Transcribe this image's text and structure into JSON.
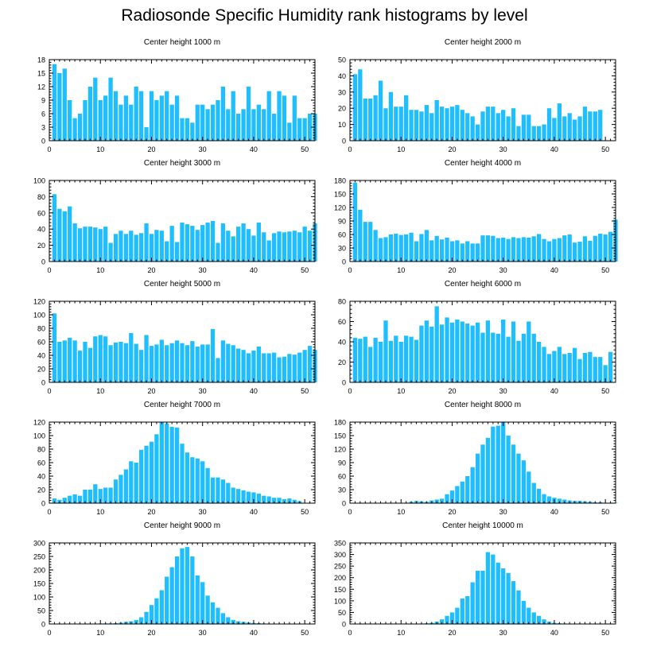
{
  "title": "Radiosonde Specific Humidity rank histograms by level",
  "colors": {
    "bar": "#1ebeff",
    "axis": "#000000",
    "background": "#ffffff"
  },
  "chart_data": [
    {
      "type": "bar",
      "title": "Center height 1000 m",
      "xlim": [
        0,
        52
      ],
      "ylim": [
        0,
        18
      ],
      "xticks": [
        0,
        10,
        20,
        30,
        40,
        50
      ],
      "yticks": [
        0,
        3,
        6,
        9,
        12,
        15,
        18
      ],
      "values": [
        17,
        15,
        16,
        9,
        5,
        6,
        9,
        12,
        14,
        9,
        10,
        14,
        11,
        8,
        10,
        8,
        12,
        11,
        3,
        11,
        9,
        10,
        11,
        8,
        10,
        5,
        5,
        4,
        8,
        8,
        7,
        8,
        9,
        12,
        7,
        11,
        6,
        7,
        12,
        7,
        8,
        7,
        11,
        6,
        11,
        10,
        4,
        10,
        5,
        5,
        6,
        6
      ]
    },
    {
      "type": "bar",
      "title": "Center height 2000 m",
      "xlim": [
        0,
        52
      ],
      "ylim": [
        0,
        50
      ],
      "xticks": [
        0,
        10,
        20,
        30,
        40,
        50
      ],
      "yticks": [
        0,
        10,
        20,
        30,
        40,
        50
      ],
      "values": [
        41,
        44,
        26,
        26,
        28,
        37,
        20,
        30,
        21,
        21,
        28,
        19,
        19,
        18,
        22,
        17,
        25,
        21,
        20,
        21,
        22,
        19,
        17,
        15,
        10,
        18,
        21,
        21,
        17,
        19,
        15,
        20,
        9,
        16,
        16,
        9,
        9,
        10,
        20,
        14,
        23,
        15,
        17,
        13,
        15,
        21,
        18,
        18,
        19
      ]
    },
    {
      "type": "bar",
      "title": "Center height 3000 m",
      "xlim": [
        0,
        52
      ],
      "ylim": [
        0,
        100
      ],
      "xticks": [
        0,
        10,
        20,
        30,
        40,
        50
      ],
      "yticks": [
        0,
        20,
        40,
        60,
        80,
        100
      ],
      "values": [
        83,
        65,
        62,
        68,
        47,
        41,
        43,
        43,
        42,
        40,
        43,
        23,
        34,
        38,
        34,
        38,
        33,
        35,
        47,
        34,
        39,
        38,
        25,
        44,
        24,
        48,
        46,
        44,
        39,
        45,
        48,
        50,
        23,
        47,
        38,
        31,
        43,
        47,
        40,
        32,
        48,
        36,
        26,
        35,
        37,
        36,
        37,
        38,
        36,
        43,
        38,
        47
      ]
    },
    {
      "type": "bar",
      "title": "Center height 4000 m",
      "xlim": [
        0,
        52
      ],
      "ylim": [
        0,
        180
      ],
      "xticks": [
        0,
        10,
        20,
        30,
        40,
        50
      ],
      "yticks": [
        0,
        30,
        60,
        90,
        120,
        150,
        180
      ],
      "values": [
        175,
        115,
        88,
        88,
        70,
        52,
        54,
        60,
        62,
        59,
        60,
        64,
        45,
        61,
        70,
        47,
        57,
        49,
        53,
        45,
        47,
        40,
        45,
        40,
        40,
        58,
        58,
        57,
        52,
        53,
        50,
        54,
        52,
        54,
        53,
        56,
        61,
        50,
        45,
        50,
        52,
        58,
        60,
        42,
        44,
        56,
        46,
        57,
        62,
        60,
        66,
        93
      ]
    },
    {
      "type": "bar",
      "title": "Center height 5000 m",
      "xlim": [
        0,
        52
      ],
      "ylim": [
        0,
        120
      ],
      "xticks": [
        0,
        10,
        20,
        30,
        40,
        50
      ],
      "yticks": [
        0,
        20,
        40,
        60,
        80,
        100,
        120
      ],
      "values": [
        102,
        60,
        62,
        66,
        62,
        47,
        60,
        51,
        68,
        70,
        68,
        55,
        59,
        60,
        58,
        73,
        57,
        48,
        70,
        54,
        56,
        63,
        55,
        58,
        62,
        58,
        55,
        61,
        53,
        56,
        56,
        79,
        36,
        62,
        57,
        55,
        50,
        48,
        43,
        47,
        53,
        43,
        43,
        44,
        37,
        38,
        42,
        41,
        44,
        48,
        54,
        48
      ]
    },
    {
      "type": "bar",
      "title": "Center height 6000 m",
      "xlim": [
        0,
        52
      ],
      "ylim": [
        0,
        80
      ],
      "xticks": [
        0,
        10,
        20,
        30,
        40,
        50
      ],
      "yticks": [
        0,
        20,
        40,
        60,
        80
      ],
      "values": [
        44,
        43,
        45,
        35,
        44,
        40,
        61,
        41,
        46,
        40,
        46,
        45,
        42,
        56,
        61,
        55,
        75,
        57,
        64,
        59,
        62,
        60,
        58,
        56,
        59,
        49,
        61,
        49,
        48,
        62,
        45,
        60,
        41,
        48,
        60,
        48,
        40,
        35,
        28,
        31,
        35,
        28,
        29,
        34,
        23,
        29,
        30,
        25,
        25,
        17,
        30
      ]
    },
    {
      "type": "bar",
      "title": "Center height 7000 m",
      "xlim": [
        0,
        52
      ],
      "ylim": [
        0,
        120
      ],
      "xticks": [
        0,
        10,
        20,
        30,
        40,
        50
      ],
      "yticks": [
        0,
        20,
        40,
        60,
        80,
        100,
        120
      ],
      "values": [
        7,
        5,
        8,
        11,
        13,
        11,
        20,
        20,
        28,
        21,
        23,
        23,
        35,
        42,
        50,
        62,
        60,
        79,
        85,
        91,
        102,
        120,
        118,
        113,
        112,
        88,
        75,
        68,
        66,
        62,
        52,
        38,
        38,
        35,
        30,
        23,
        21,
        19,
        17,
        16,
        14,
        11,
        10,
        8,
        8,
        6,
        7,
        5,
        3
      ]
    },
    {
      "type": "bar",
      "title": "Center height 8000 m",
      "xlim": [
        0,
        52
      ],
      "ylim": [
        0,
        180
      ],
      "xticks": [
        0,
        10,
        20,
        30,
        40,
        50
      ],
      "yticks": [
        0,
        30,
        60,
        90,
        120,
        150,
        180
      ],
      "values": [
        0,
        0,
        0,
        0,
        0,
        0,
        0,
        0,
        1,
        1,
        1,
        3,
        5,
        4,
        3,
        6,
        8,
        10,
        20,
        28,
        38,
        48,
        60,
        80,
        110,
        130,
        145,
        170,
        172,
        180,
        150,
        130,
        110,
        95,
        70,
        45,
        32,
        20,
        15,
        12,
        10,
        8,
        6,
        5,
        5,
        4,
        3,
        2,
        2,
        1,
        1,
        1
      ]
    },
    {
      "type": "bar",
      "title": "Center height 9000 m",
      "xlim": [
        0,
        52
      ],
      "ylim": [
        0,
        300
      ],
      "xticks": [
        0,
        10,
        20,
        30,
        40,
        50
      ],
      "yticks": [
        0,
        50,
        100,
        150,
        200,
        250,
        300
      ],
      "values": [
        0,
        0,
        0,
        0,
        0,
        0,
        1,
        1,
        1,
        2,
        2,
        2,
        3,
        5,
        8,
        10,
        15,
        25,
        45,
        70,
        95,
        125,
        175,
        210,
        250,
        280,
        285,
        250,
        180,
        155,
        105,
        80,
        60,
        40,
        25,
        15,
        10,
        8,
        6,
        4,
        3,
        2,
        1,
        0,
        0,
        0,
        0,
        0,
        0,
        0,
        0,
        0
      ]
    },
    {
      "type": "bar",
      "title": "Center height 10000 m",
      "xlim": [
        0,
        52
      ],
      "ylim": [
        0,
        350
      ],
      "xticks": [
        0,
        10,
        20,
        30,
        40,
        50
      ],
      "yticks": [
        0,
        50,
        100,
        150,
        200,
        250,
        300,
        350
      ],
      "values": [
        0,
        0,
        0,
        0,
        0,
        0,
        0,
        0,
        0,
        0,
        0,
        0,
        1,
        2,
        3,
        5,
        10,
        20,
        35,
        50,
        70,
        110,
        120,
        180,
        230,
        230,
        310,
        300,
        265,
        240,
        220,
        185,
        145,
        100,
        70,
        50,
        35,
        20,
        10,
        5,
        3,
        2,
        1,
        1,
        0,
        0,
        0,
        0,
        0,
        0,
        0,
        0
      ]
    }
  ]
}
